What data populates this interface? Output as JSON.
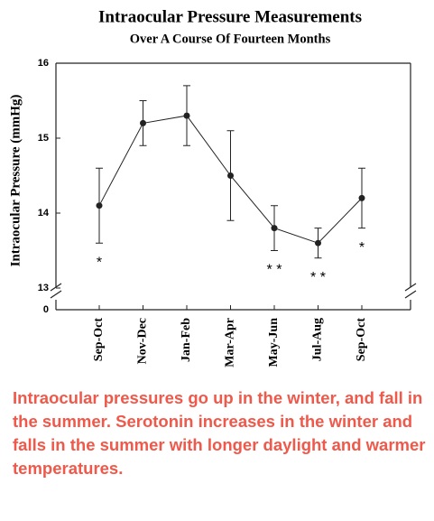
{
  "chart_data": {
    "type": "line",
    "title": "Intraocular Pressure Measurements",
    "subtitle": "Over A Course Of Fourteen Months",
    "y_label": "Intraocular Pressure (mmHg)",
    "categories": [
      "Sep-Oct",
      "Nov-Dec",
      "Jan-Feb",
      "Mar-Apr",
      "May-Jun",
      "Jul-Aug",
      "Sep-Oct"
    ],
    "values": [
      14.1,
      15.2,
      15.3,
      14.5,
      13.8,
      13.6,
      14.2
    ],
    "errors": [
      0.5,
      0.3,
      0.4,
      0.6,
      0.3,
      0.2,
      0.4
    ],
    "significance": [
      "*",
      null,
      null,
      null,
      "* *",
      "* *",
      "*"
    ],
    "color": "#222222",
    "ylim": [
      13,
      16
    ],
    "yticks": [
      13,
      14,
      15,
      16
    ],
    "y_break_tick": 0
  },
  "caption": "Intraocular pressures go up in the winter, and fall in the summer. Serotonin increases in the winter and falls in the summer with longer daylight and warmer temperatures."
}
